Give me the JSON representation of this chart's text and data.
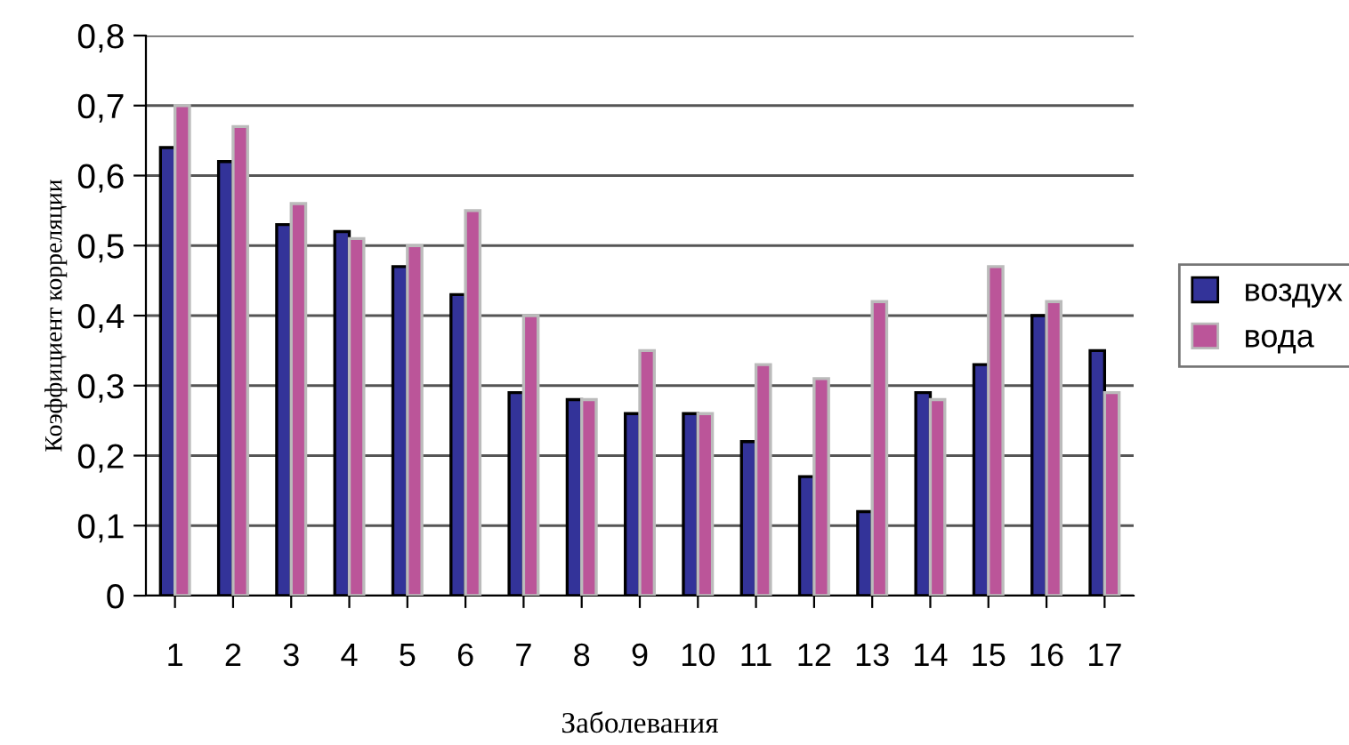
{
  "chart_data": {
    "type": "bar",
    "xlabel": "Заболевания",
    "ylabel": "Коэффициент корреляции",
    "categories": [
      "1",
      "2",
      "3",
      "4",
      "5",
      "6",
      "7",
      "8",
      "9",
      "10",
      "11",
      "12",
      "13",
      "14",
      "15",
      "16",
      "17"
    ],
    "series": [
      {
        "name": "воздух",
        "color": "#333399",
        "values": [
          0.64,
          0.62,
          0.53,
          0.52,
          0.47,
          0.43,
          0.29,
          0.28,
          0.26,
          0.26,
          0.22,
          0.17,
          0.12,
          0.29,
          0.33,
          0.4,
          0.35
        ]
      },
      {
        "name": "вода",
        "color": "#bb5599",
        "values": [
          0.7,
          0.67,
          0.56,
          0.51,
          0.5,
          0.55,
          0.4,
          0.28,
          0.35,
          0.26,
          0.33,
          0.31,
          0.42,
          0.28,
          0.47,
          0.42,
          0.29
        ]
      }
    ],
    "ylim": [
      0,
      0.8
    ],
    "yticks": [
      {
        "value": 0,
        "label": "0"
      },
      {
        "value": 0.1,
        "label": "0,1"
      },
      {
        "value": 0.2,
        "label": "0,2"
      },
      {
        "value": 0.3,
        "label": "0,3"
      },
      {
        "value": 0.4,
        "label": "0,4"
      },
      {
        "value": 0.5,
        "label": "0,5"
      },
      {
        "value": 0.6,
        "label": "0,6"
      },
      {
        "value": 0.7,
        "label": "0,7"
      },
      {
        "value": 0.8,
        "label": "0,8"
      }
    ],
    "grid": "y",
    "legend": "right"
  }
}
